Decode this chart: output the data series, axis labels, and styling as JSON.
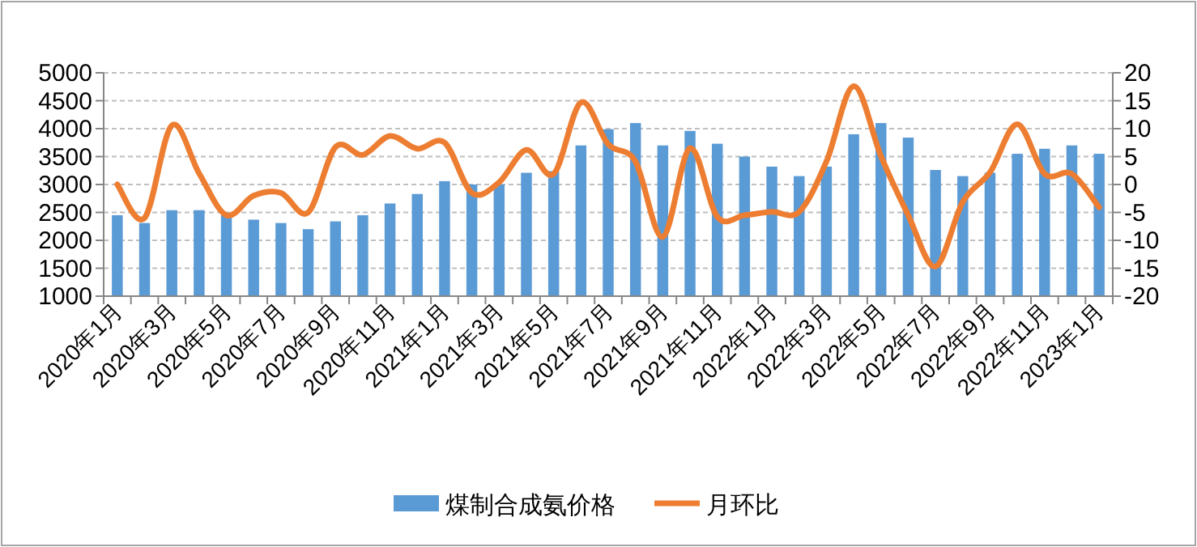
{
  "chart_data": {
    "type": "bar",
    "categories": [
      "2020年1月",
      null,
      "2020年3月",
      null,
      "2020年5月",
      null,
      "2020年7月",
      null,
      "2020年9月",
      null,
      "2020年11月",
      null,
      "2021年1月",
      null,
      "2021年3月",
      null,
      "2021年5月",
      null,
      "2021年7月",
      null,
      "2021年9月",
      null,
      "2021年11月",
      null,
      "2022年1月",
      null,
      "2022年3月",
      null,
      "2022年5月",
      null,
      "2022年7月",
      null,
      "2022年9月",
      null,
      "2022年11月",
      null,
      "2023年1月"
    ],
    "series": [
      {
        "name": "煤制合成氨价格",
        "color": "#5b9bd5",
        "values": [
          2450,
          2310,
          2540,
          2540,
          2450,
          2370,
          2310,
          2200,
          2340,
          2450,
          2660,
          2830,
          3060,
          3000,
          3000,
          3210,
          3240,
          3700,
          3990,
          4100,
          3700,
          3960,
          3730,
          3500,
          3320,
          3150,
          3320,
          3900,
          4100,
          3840,
          3260,
          3150,
          3210,
          3550,
          3640,
          3700,
          3550
        ]
      },
      {
        "name": "月环比",
        "type": "line",
        "axis": "y2",
        "color": "#ed7d31",
        "values": [
          0,
          -6,
          10.6,
          2,
          -5.5,
          -2,
          -1.5,
          -5,
          6.7,
          5.3,
          8.7,
          6.4,
          7.5,
          -1.5,
          0.4,
          6.2,
          1.9,
          14.7,
          7.2,
          4.1,
          -9.4,
          6.5,
          -5.8,
          -5.5,
          -4.9,
          -4.9,
          4.1,
          17.6,
          5.1,
          -5.5,
          -14.7,
          -3.1,
          2.2,
          10.8,
          1.9,
          1.9,
          -4.1
        ]
      }
    ],
    "ylim": [
      1000,
      5000
    ],
    "yticks": [
      1000,
      1500,
      2000,
      2500,
      3000,
      3500,
      4000,
      4500,
      5000
    ],
    "y2lim": [
      -20,
      20
    ],
    "y2ticks": [
      -20,
      -15,
      -10,
      -5,
      0,
      5,
      10,
      15,
      20
    ],
    "grid": "y",
    "legend": "bottom",
    "marker": "none",
    "line_style": "solid"
  }
}
